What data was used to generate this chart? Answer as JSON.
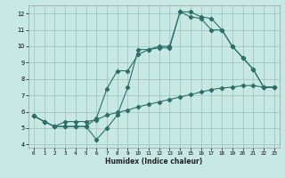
{
  "xlabel": "Humidex (Indice chaleur)",
  "background_color": "#c8e8e4",
  "grid_color": "#a0c8c4",
  "line_color": "#2a7068",
  "xlim": [
    -0.5,
    23.5
  ],
  "ylim": [
    3.8,
    12.5
  ],
  "xticks": [
    0,
    1,
    2,
    3,
    4,
    5,
    6,
    7,
    8,
    9,
    10,
    11,
    12,
    13,
    14,
    15,
    16,
    17,
    18,
    19,
    20,
    21,
    22,
    23
  ],
  "yticks": [
    4,
    5,
    6,
    7,
    8,
    9,
    10,
    11,
    12
  ],
  "line1_x": [
    0,
    1,
    2,
    3,
    4,
    5,
    6,
    7,
    8,
    9,
    10,
    11,
    12,
    13,
    14,
    15,
    16,
    17,
    18,
    19,
    20,
    21,
    22,
    23
  ],
  "line1_y": [
    5.75,
    5.4,
    5.1,
    5.1,
    5.1,
    5.1,
    4.3,
    5.0,
    5.8,
    7.5,
    9.8,
    9.8,
    9.9,
    9.9,
    12.1,
    12.1,
    11.8,
    11.7,
    11.0,
    10.0,
    9.3,
    8.6,
    7.5,
    7.5
  ],
  "line2_x": [
    0,
    1,
    2,
    3,
    4,
    5,
    6,
    7,
    8,
    9,
    10,
    11,
    12,
    13,
    14,
    15,
    16,
    17,
    18,
    19,
    20,
    21,
    22,
    23
  ],
  "line2_y": [
    5.75,
    5.4,
    5.1,
    5.1,
    5.1,
    5.1,
    5.6,
    7.4,
    8.5,
    8.5,
    9.5,
    9.8,
    10.0,
    10.0,
    12.1,
    11.8,
    11.7,
    11.0,
    11.0,
    10.0,
    9.3,
    8.6,
    7.5,
    7.5
  ],
  "line3_x": [
    0,
    1,
    2,
    3,
    4,
    5,
    6,
    7,
    8,
    9,
    10,
    11,
    12,
    13,
    14,
    15,
    16,
    17,
    18,
    19,
    20,
    21,
    22,
    23
  ],
  "line3_y": [
    5.75,
    5.4,
    5.1,
    5.4,
    5.4,
    5.4,
    5.5,
    5.8,
    5.95,
    6.1,
    6.3,
    6.45,
    6.6,
    6.75,
    6.9,
    7.05,
    7.2,
    7.35,
    7.45,
    7.5,
    7.6,
    7.6,
    7.5,
    7.5
  ]
}
